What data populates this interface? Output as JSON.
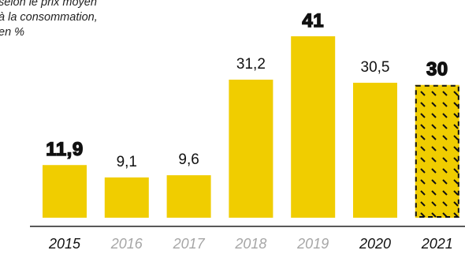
{
  "subtitle_lines": [
    "selon le prix moyen",
    "à la consommation,",
    "en %"
  ],
  "chart_data": {
    "type": "bar",
    "categories": [
      "2015",
      "2016",
      "2017",
      "2018",
      "2019",
      "2020",
      "2021"
    ],
    "values": [
      11.9,
      9.1,
      9.6,
      31.2,
      41,
      30.5,
      30
    ],
    "value_labels": [
      "11,9",
      "9,1",
      "9,6",
      "31,2",
      "41",
      "30,5",
      "30"
    ],
    "emphasized_values": [
      true,
      false,
      false,
      false,
      true,
      false,
      true
    ],
    "emphasized_years": [
      true,
      false,
      false,
      false,
      false,
      true,
      true
    ],
    "estimate_hatched": [
      false,
      false,
      false,
      false,
      false,
      false,
      true
    ],
    "title": "",
    "xlabel": "",
    "ylabel": "",
    "ylim": [
      0,
      41
    ],
    "grid": false,
    "legend": "none",
    "colors": {
      "bar": "#f0cd00",
      "baseline": "#222222",
      "year_strong": "#111111",
      "year_muted": "#a6a6a6",
      "hatch": "#111111"
    }
  }
}
